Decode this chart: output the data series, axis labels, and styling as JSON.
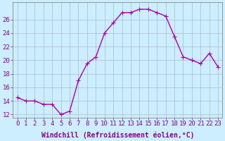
{
  "x": [
    0,
    1,
    2,
    3,
    4,
    5,
    6,
    7,
    8,
    9,
    10,
    11,
    12,
    13,
    14,
    15,
    16,
    17,
    18,
    19,
    20,
    21,
    22,
    23
  ],
  "y": [
    14.5,
    14.0,
    14.0,
    13.5,
    13.5,
    12.0,
    12.5,
    17.0,
    19.5,
    20.5,
    24.0,
    25.5,
    27.0,
    27.0,
    27.5,
    27.5,
    27.0,
    26.5,
    23.5,
    20.5,
    20.0,
    19.5,
    21.0,
    19.0
  ],
  "line_color": "#aa00aa",
  "marker": "+",
  "markersize": 4,
  "linewidth": 1.0,
  "bg_color": "#cceeff",
  "grid_color": "#aabbcc",
  "xlabel": "Windchill (Refroidissement éolien,°C)",
  "xlabel_fontsize": 7,
  "xtick_labels": [
    "0",
    "1",
    "2",
    "3",
    "4",
    "5",
    "6",
    "7",
    "8",
    "9",
    "10",
    "11",
    "12",
    "13",
    "14",
    "15",
    "16",
    "17",
    "18",
    "19",
    "20",
    "21",
    "22",
    "23"
  ],
  "yticks": [
    12,
    14,
    16,
    18,
    20,
    22,
    24,
    26
  ],
  "ylim": [
    11.5,
    28.5
  ],
  "xlim": [
    -0.5,
    23.5
  ],
  "tick_fontsize": 6.5
}
